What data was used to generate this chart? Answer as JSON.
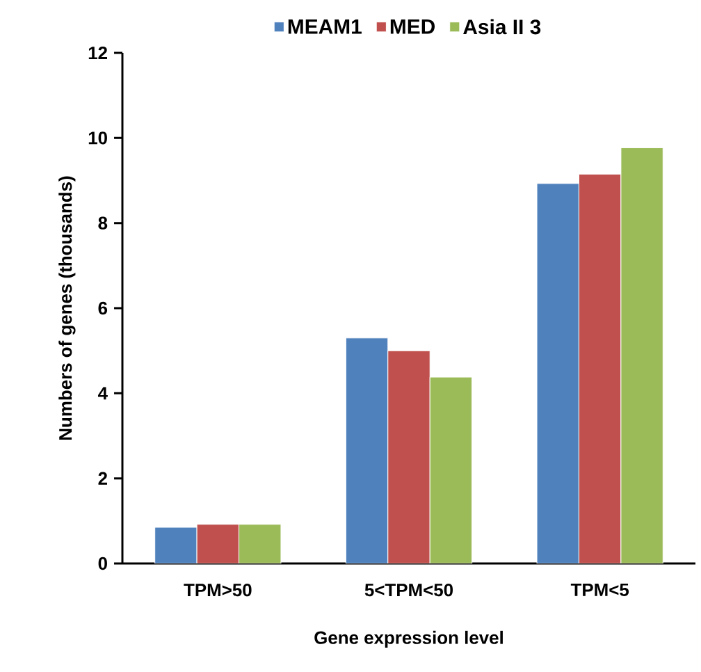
{
  "chart_data": {
    "type": "bar",
    "xlabel": "Gene expression level",
    "ylabel": "Numbers of genes (thousands)",
    "categories": [
      "TPM>50",
      "5<TPM<50",
      "TPM<5"
    ],
    "series": [
      {
        "name": "MEAM1",
        "color": "#4f81bd",
        "values": [
          0.85,
          5.3,
          8.93
        ]
      },
      {
        "name": "MED",
        "color": "#c0504d",
        "values": [
          0.92,
          5.0,
          9.15
        ]
      },
      {
        "name": "Asia II 3",
        "color": "#9bbb59",
        "values": [
          0.92,
          4.38,
          9.77
        ]
      }
    ],
    "ylim": [
      0,
      12
    ],
    "yticks": [
      0,
      2,
      4,
      6,
      8,
      10,
      12
    ],
    "grid": false,
    "legend": "top"
  }
}
